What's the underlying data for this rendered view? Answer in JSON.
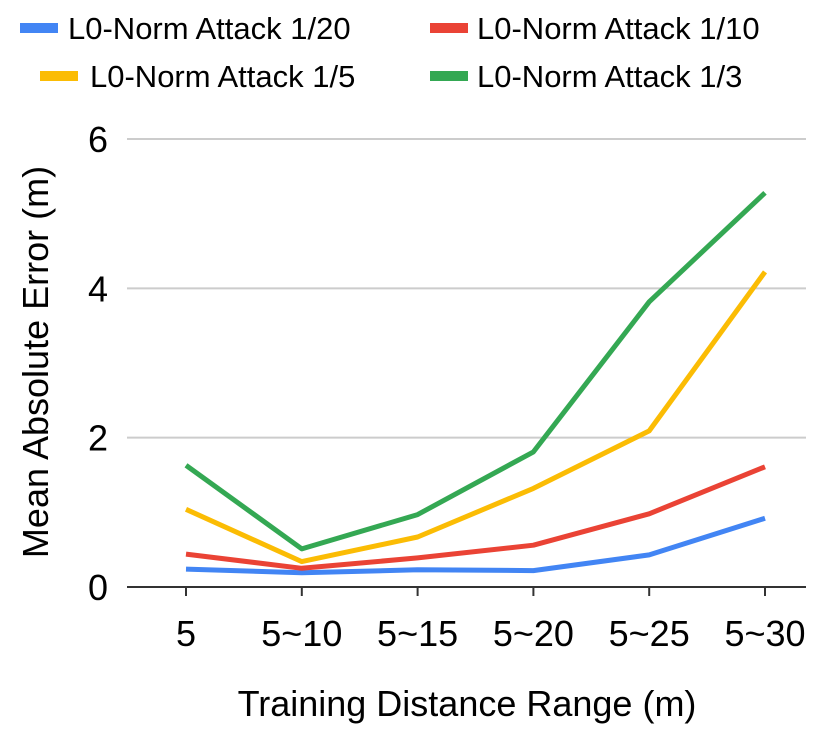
{
  "chart_data": {
    "type": "line",
    "title": "",
    "xlabel": "Training Distance Range (m)",
    "ylabel": "Mean Absolute Error (m)",
    "categories": [
      "5",
      "5~10",
      "5~15",
      "5~20",
      "5~25",
      "5~30"
    ],
    "ylim": [
      0,
      6
    ],
    "yticks": [
      0,
      2,
      4,
      6
    ],
    "grid": true,
    "legend_position": "top",
    "series": [
      {
        "name": "L0-Norm Attack 1/20",
        "color": "#4285f4",
        "values": [
          0.24,
          0.19,
          0.23,
          0.22,
          0.43,
          0.92
        ]
      },
      {
        "name": "L0-Norm Attack 1/10",
        "color": "#ea4335",
        "values": [
          0.44,
          0.25,
          0.39,
          0.56,
          0.98,
          1.61
        ]
      },
      {
        "name": "L0-Norm Attack 1/5",
        "color": "#fbbc04",
        "values": [
          1.04,
          0.34,
          0.67,
          1.32,
          2.09,
          4.22
        ]
      },
      {
        "name": "L0-Norm Attack 1/3",
        "color": "#34a853",
        "values": [
          1.63,
          0.51,
          0.97,
          1.81,
          3.82,
          5.28
        ]
      }
    ]
  }
}
